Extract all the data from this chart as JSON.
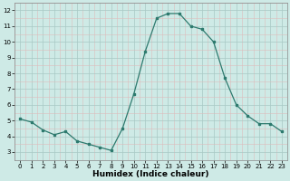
{
  "x": [
    0,
    1,
    2,
    3,
    4,
    5,
    6,
    7,
    8,
    9,
    10,
    11,
    12,
    13,
    14,
    15,
    16,
    17,
    18,
    19,
    20,
    21,
    22,
    23
  ],
  "y": [
    5.1,
    4.9,
    4.4,
    4.1,
    4.3,
    3.7,
    3.5,
    3.3,
    3.1,
    4.5,
    6.7,
    9.4,
    11.5,
    11.8,
    11.8,
    11.0,
    10.8,
    10.0,
    7.7,
    6.0,
    5.3,
    4.8,
    4.8,
    4.3
  ],
  "line_color": "#2d7a6e",
  "marker": "s",
  "marker_size": 2.0,
  "bg_color": "#ceeae6",
  "grid_color_major": "#a8c8c4",
  "grid_color_minor": "#ddbcbc",
  "xlabel": "Humidex (Indice chaleur)",
  "ylim": [
    2.5,
    12.5
  ],
  "xlim": [
    -0.5,
    23.5
  ],
  "yticks": [
    3,
    4,
    5,
    6,
    7,
    8,
    9,
    10,
    11,
    12
  ],
  "xticks": [
    0,
    1,
    2,
    3,
    4,
    5,
    6,
    7,
    8,
    9,
    10,
    11,
    12,
    13,
    14,
    15,
    16,
    17,
    18,
    19,
    20,
    21,
    22,
    23
  ]
}
